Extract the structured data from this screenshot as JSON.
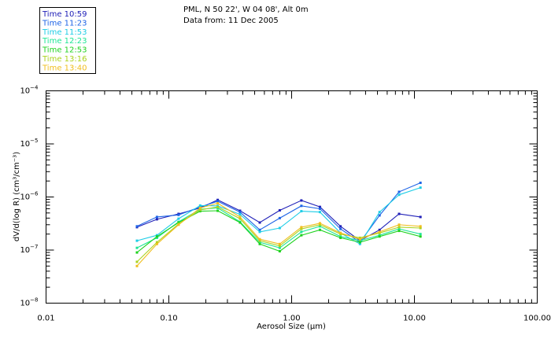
{
  "chart_data": {
    "type": "line",
    "header": {
      "location": "PML, N 50 22', W 04 08', Alt 0m",
      "date": "Data from: 11 Dec 2005"
    },
    "xlabel": "Aerosol Size (μm)",
    "ylabel": "dV/d(log R) (cm³/cm⁻³)",
    "xscale": "log",
    "yscale": "log",
    "xlim": [
      0.01,
      100
    ],
    "ylim": [
      1e-08,
      0.0001
    ],
    "x_ticks": [
      {
        "v": 0.01,
        "label": "0.01"
      },
      {
        "v": 0.1,
        "label": "0.10"
      },
      {
        "v": 1,
        "label": "1.00"
      },
      {
        "v": 10,
        "label": "10.00"
      },
      {
        "v": 100,
        "label": "100.00"
      }
    ],
    "y_ticks": [
      {
        "v": 1e-08,
        "base": "10",
        "exp": "−8"
      },
      {
        "v": 1e-07,
        "base": "10",
        "exp": "−7"
      },
      {
        "v": 1e-06,
        "base": "10",
        "exp": "−6"
      },
      {
        "v": 1e-05,
        "base": "10",
        "exp": "−5"
      },
      {
        "v": 0.0001,
        "base": "10",
        "exp": "−4"
      }
    ],
    "x": [
      0.055,
      0.08,
      0.12,
      0.18,
      0.25,
      0.38,
      0.55,
      0.8,
      1.2,
      1.7,
      2.5,
      3.6,
      5.2,
      7.5,
      11.2
    ],
    "series": [
      {
        "name": "Time 10:59",
        "color": "#2020b8",
        "values": [
          2.7e-07,
          3.8e-07,
          4.8e-07,
          6.2e-07,
          8.8e-07,
          5.5e-07,
          3.3e-07,
          5.6e-07,
          8.6e-07,
          6.5e-07,
          2.8e-07,
          1.5e-07,
          2.4e-07,
          4.8e-07,
          4.2e-07
        ]
      },
      {
        "name": "Time 11:23",
        "color": "#1e64e6",
        "values": [
          2.8e-07,
          4.2e-07,
          4.6e-07,
          6.5e-07,
          8.3e-07,
          5.2e-07,
          2.4e-07,
          4e-07,
          6.8e-07,
          6e-07,
          2.5e-07,
          1.4e-07,
          4.5e-07,
          1.25e-06,
          1.85e-06
        ]
      },
      {
        "name": "Time 11:53",
        "color": "#1ecde6",
        "values": [
          1.5e-07,
          1.9e-07,
          3.9e-07,
          6.9e-07,
          6.8e-07,
          4.7e-07,
          2.2e-07,
          2.6e-07,
          5.4e-07,
          5.2e-07,
          2.1e-07,
          1.3e-07,
          5.2e-07,
          1.1e-06,
          1.5e-06
        ]
      },
      {
        "name": "Time 12:23",
        "color": "#1ee696",
        "values": [
          1.1e-07,
          1.7e-07,
          3.4e-07,
          5.9e-07,
          6.2e-07,
          3.4e-07,
          1.4e-07,
          1.1e-07,
          2.2e-07,
          2.8e-07,
          1.8e-07,
          1.5e-07,
          1.9e-07,
          2.5e-07,
          2e-07
        ]
      },
      {
        "name": "Time 12:53",
        "color": "#1ed21e",
        "values": [
          9e-08,
          1.8e-07,
          3.3e-07,
          5.4e-07,
          5.5e-07,
          3.3e-07,
          1.3e-07,
          9.5e-08,
          1.9e-07,
          2.4e-07,
          1.7e-07,
          1.4e-07,
          1.8e-07,
          2.3e-07,
          1.8e-07
        ]
      },
      {
        "name": "Time 13:16",
        "color": "#aad21e",
        "values": [
          6e-08,
          1.4e-07,
          3.1e-07,
          5.7e-07,
          6.5e-07,
          3.9e-07,
          1.5e-07,
          1.2e-07,
          2.5e-07,
          3e-07,
          2e-07,
          1.7e-07,
          2.1e-07,
          2.7e-07,
          2.6e-07
        ]
      },
      {
        "name": "Time 13:40",
        "color": "#f0be1e",
        "values": [
          5e-08,
          1.3e-07,
          3e-07,
          6.2e-07,
          7.6e-07,
          4.2e-07,
          1.6e-07,
          1.3e-07,
          2.7e-07,
          3.2e-07,
          2.1e-07,
          1.6e-07,
          2.2e-07,
          3e-07,
          2.8e-07
        ]
      }
    ]
  }
}
